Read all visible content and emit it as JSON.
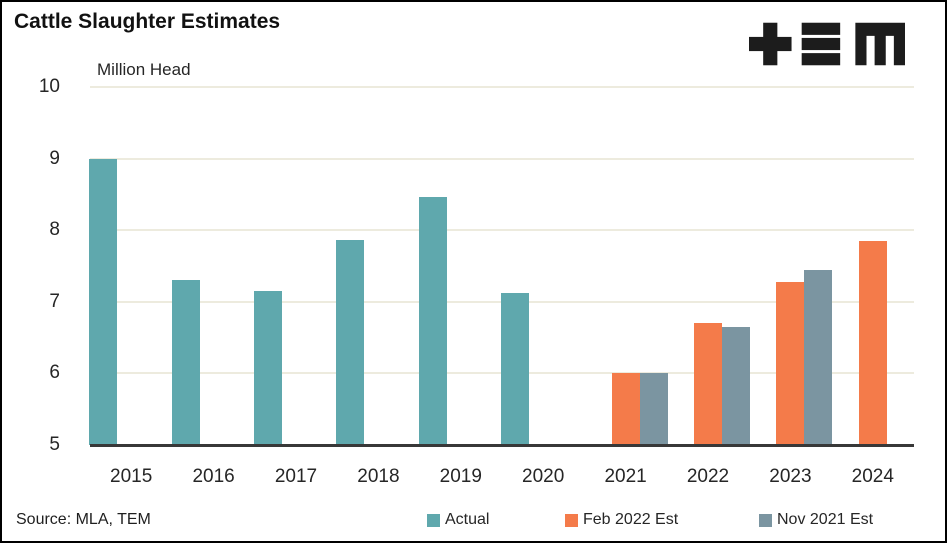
{
  "title": "Cattle Slaughter Estimates",
  "source": "Source: MLA, TEM",
  "logo": {
    "name": "tem-logo",
    "color": "#1c1c1c"
  },
  "colors": {
    "actual": "#5fa8ad",
    "feb_2022_est": "#f47b4a",
    "nov_2021_est": "#7b95a1",
    "gridline": "#edebde",
    "axis_line": "#383838",
    "text": "#262626"
  },
  "chart_data": {
    "type": "bar",
    "title": "Cattle Slaughter Estimates",
    "ylabel": "Million Head",
    "xlabel": "",
    "categories": [
      "2015",
      "2016",
      "2017",
      "2018",
      "2019",
      "2020",
      "2021",
      "2022",
      "2023",
      "2024"
    ],
    "series": [
      {
        "name": "Actual",
        "color": "#5fa8ad",
        "values": [
          9.0,
          7.3,
          7.15,
          7.87,
          8.47,
          7.13,
          null,
          null,
          null,
          null
        ]
      },
      {
        "name": "Feb 2022 Est",
        "color": "#f47b4a",
        "values": [
          null,
          null,
          null,
          null,
          null,
          null,
          6.0,
          6.7,
          7.28,
          7.85
        ]
      },
      {
        "name": "Nov 2021 Est",
        "color": "#7b95a1",
        "values": [
          null,
          null,
          null,
          null,
          null,
          null,
          6.0,
          6.65,
          7.45,
          null
        ]
      }
    ],
    "ylim": [
      5,
      10
    ],
    "yticks": [
      5,
      6,
      7,
      8,
      9,
      10
    ],
    "grid": true,
    "legend_position": "bottom"
  },
  "legend": {
    "items": [
      {
        "label": "Actual",
        "color": "#5fa8ad"
      },
      {
        "label": "Feb 2022 Est",
        "color": "#f47b4a"
      },
      {
        "label": "Nov 2021 Est",
        "color": "#7b95a1"
      }
    ]
  }
}
